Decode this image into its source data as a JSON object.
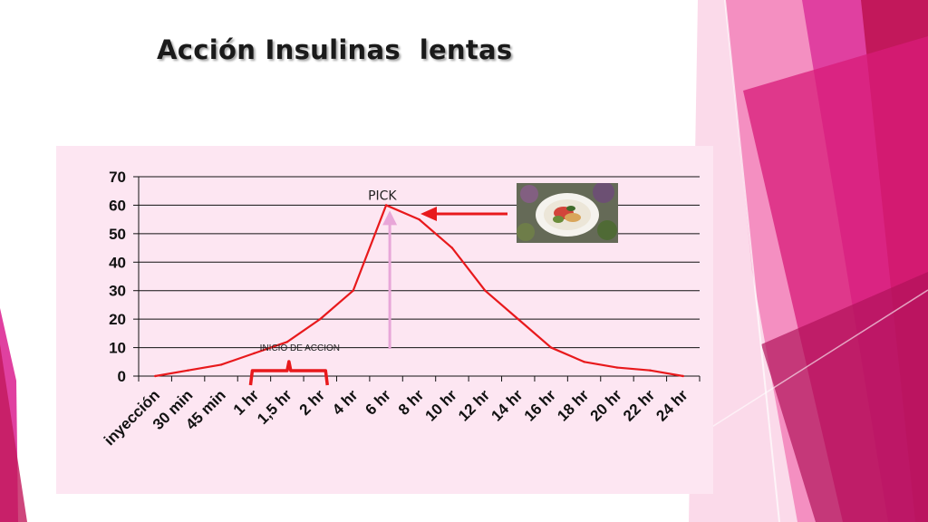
{
  "slide": {
    "title": "Acción Insulinas  lentas",
    "accent_colors": [
      "#c2185b",
      "#e040a0",
      "#f48fc1",
      "#f8bbd9"
    ]
  },
  "chart_data": {
    "type": "line",
    "categories": [
      "inyección",
      "30 min",
      "45 min",
      "1 hr",
      "1,5 hr",
      "2 hr",
      "4 hr",
      "6 hr",
      "8 hr",
      "10 hr",
      "12 hr",
      "14 hr",
      "16 hr",
      "18 hr",
      "20 hr",
      "22 hr",
      "24 hr"
    ],
    "x": [
      0,
      1,
      2,
      3,
      4,
      5,
      6,
      7,
      8,
      9,
      10,
      11,
      12,
      13,
      14,
      15,
      16
    ],
    "series": [
      {
        "values": [
          0,
          2,
          4,
          8,
          12,
          20,
          30,
          60,
          55,
          45,
          30,
          20,
          10,
          5,
          3,
          2,
          0
        ],
        "color": "#e8191c"
      }
    ],
    "yticks": [
      0,
      10,
      20,
      30,
      40,
      50,
      60,
      70
    ],
    "ylim": [
      0,
      70
    ],
    "grid": true,
    "background": "#fde6f2",
    "annotations": [
      {
        "text": "PICK",
        "at_category": "6 hr"
      },
      {
        "text": "INICIO DE ACCION",
        "from_category": "1 hr",
        "to_category": "2 hr"
      }
    ],
    "arrow_colors": {
      "peak_arrow_up": "#e8a6d8",
      "image_arrow": "#e8191c",
      "brace": "#e8191c"
    }
  },
  "image": {
    "icon": "food-plate-photo"
  }
}
